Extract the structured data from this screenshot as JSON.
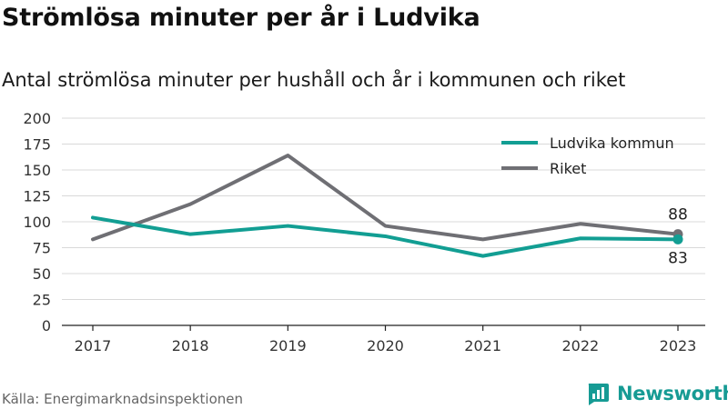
{
  "header": {
    "title": "Strömlösa minuter per år i Ludvika",
    "subtitle": "Antal strömlösa minuter per hushåll och år i kommunen och riket"
  },
  "footer": {
    "source": "Källa: Energimarknadsinspektionen",
    "brand": "Newsworthy",
    "brand_icon": "newsworthy-logo-icon"
  },
  "colors": {
    "ludvika": "#129e93",
    "riket": "#6f6f74",
    "grid": "#d9d9d9",
    "brand": "#169b94"
  },
  "chart_data": {
    "type": "line",
    "categories": [
      "2017",
      "2018",
      "2019",
      "2020",
      "2021",
      "2022",
      "2023"
    ],
    "series": [
      {
        "name": "Ludvika kommun",
        "values": [
          104,
          88,
          96,
          86,
          67,
          84,
          83
        ],
        "end_label": "83"
      },
      {
        "name": "Riket",
        "values": [
          83,
          117,
          164,
          96,
          83,
          98,
          88
        ],
        "end_label": "88"
      }
    ],
    "title": "Strömlösa minuter per år i Ludvika",
    "xlabel": "",
    "ylabel": "",
    "ylim": [
      0,
      200
    ],
    "yticks": [
      0,
      25,
      50,
      75,
      100,
      125,
      150,
      175,
      200
    ],
    "grid": true,
    "legend": "top-right"
  }
}
